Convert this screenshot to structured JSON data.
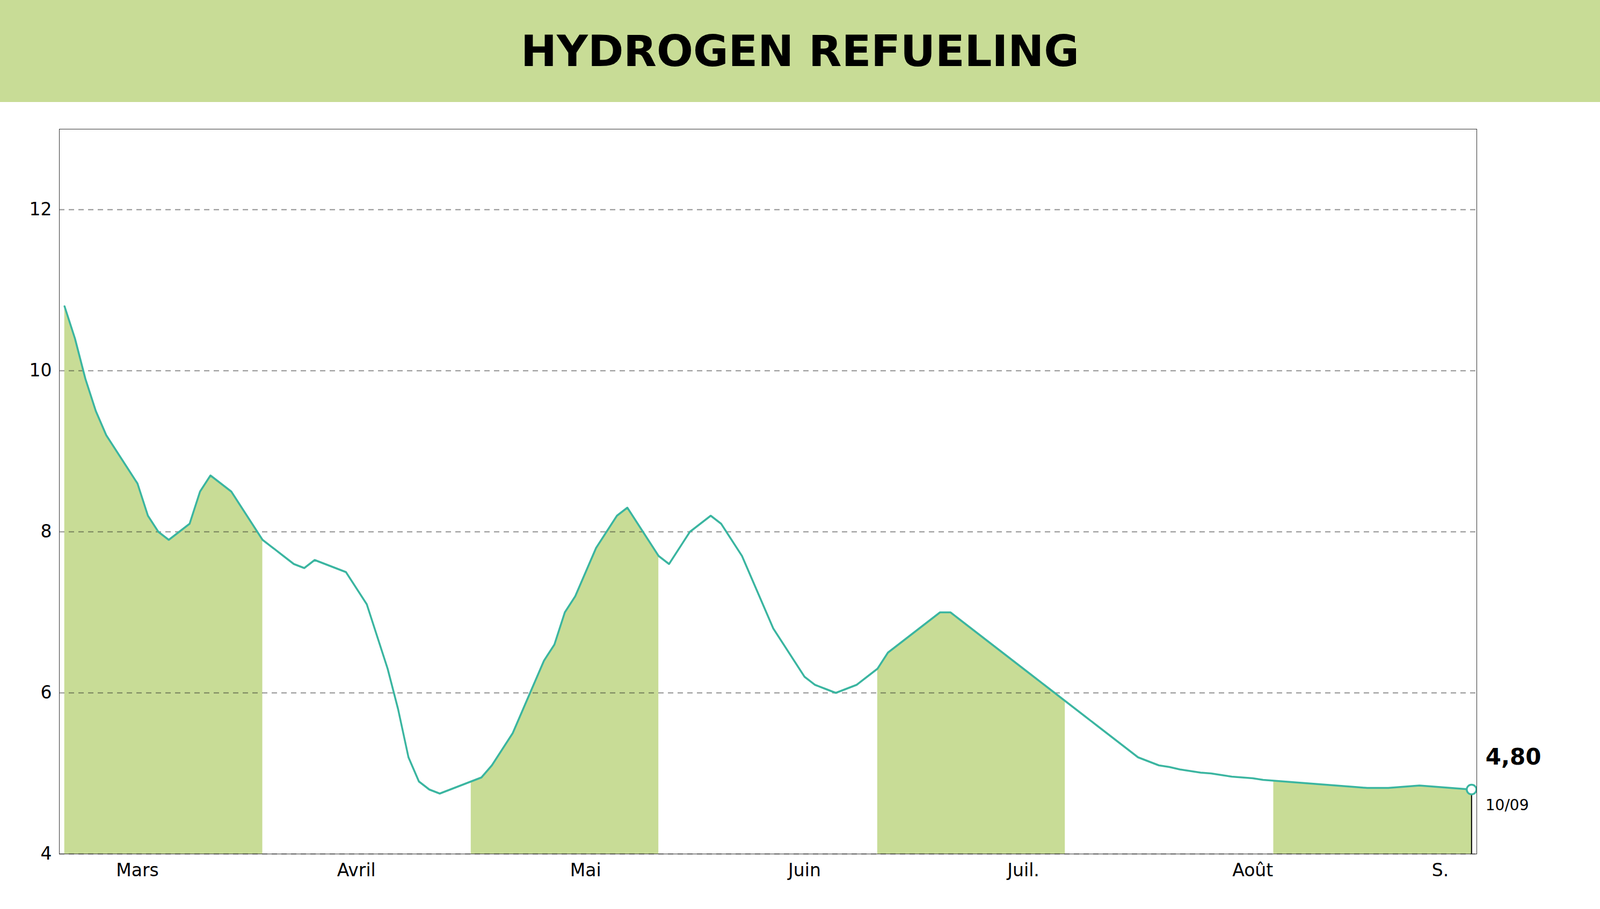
{
  "chart_data": {
    "type": "line",
    "title": "HYDROGEN REFUELING",
    "color": "#3ab5a0",
    "ylim": [
      4,
      13.0
    ],
    "yticks": [
      4,
      6,
      8,
      10,
      12
    ],
    "grid": true,
    "data_labels": true,
    "annotations": [
      "10/09"
    ],
    "categories": [
      null,
      null,
      null,
      null,
      null,
      null,
      null,
      "Mars",
      null,
      null,
      null,
      null,
      null,
      null,
      null,
      null,
      null,
      null,
      null,
      null,
      null,
      null,
      null,
      null,
      null,
      null,
      null,
      null,
      "Avril",
      null,
      null,
      null,
      null,
      null,
      null,
      null,
      null,
      null,
      null,
      null,
      null,
      null,
      null,
      null,
      null,
      null,
      null,
      null,
      null,
      null,
      "Mai",
      null,
      null,
      null,
      null,
      null,
      null,
      null,
      null,
      null,
      null,
      null,
      null,
      null,
      null,
      null,
      null,
      null,
      null,
      null,
      null,
      "Juin",
      null,
      null,
      null,
      null,
      null,
      null,
      null,
      null,
      null,
      null,
      null,
      null,
      null,
      null,
      null,
      null,
      null,
      null,
      null,
      null,
      "Juil.",
      null,
      null,
      null,
      null,
      null,
      null,
      null,
      null,
      null,
      null,
      null,
      null,
      null,
      null,
      null,
      null,
      null,
      null,
      null,
      null,
      null,
      "Août",
      null,
      null,
      null,
      null,
      null,
      null,
      null,
      null,
      null,
      null,
      null,
      null,
      null,
      null,
      null,
      null,
      null,
      "S.",
      null,
      null,
      null
    ],
    "values": [
      10.8,
      10.4,
      9.9,
      9.5,
      9.2,
      9.0,
      8.8,
      8.6,
      8.2,
      8.0,
      7.9,
      8.0,
      8.1,
      8.5,
      8.7,
      8.6,
      8.5,
      8.3,
      8.1,
      7.9,
      7.8,
      7.7,
      7.6,
      7.55,
      7.65,
      7.6,
      7.55,
      7.5,
      7.3,
      7.1,
      6.7,
      6.3,
      5.8,
      5.2,
      4.9,
      4.8,
      4.75,
      4.8,
      4.85,
      4.9,
      4.95,
      5.1,
      5.3,
      5.5,
      5.8,
      6.1,
      6.4,
      6.6,
      7.0,
      7.2,
      7.5,
      7.8,
      8.0,
      8.2,
      8.3,
      8.1,
      7.9,
      7.7,
      7.6,
      7.8,
      8.0,
      8.1,
      8.2,
      8.1,
      7.9,
      7.7,
      7.4,
      7.1,
      6.8,
      6.6,
      6.4,
      6.2,
      6.1,
      6.05,
      6.0,
      6.05,
      6.1,
      6.2,
      6.3,
      6.5,
      6.6,
      6.7,
      6.8,
      6.9,
      7.0,
      7.0,
      6.9,
      6.8,
      6.7,
      6.6,
      6.5,
      6.4,
      6.3,
      6.2,
      6.1,
      6.0,
      5.9,
      5.8,
      5.7,
      5.6,
      5.5,
      5.4,
      5.3,
      5.2,
      5.15,
      5.1,
      5.08,
      5.05,
      5.03,
      5.01,
      5.0,
      4.98,
      4.96,
      4.95,
      4.94,
      4.92,
      4.91,
      4.9,
      4.89,
      4.88,
      4.87,
      4.86,
      4.85,
      4.84,
      4.83,
      4.82,
      4.82,
      4.82,
      4.83,
      4.84,
      4.85,
      4.84,
      4.83,
      4.82,
      4.81,
      4.8
    ],
    "value_labels": [
      null,
      null,
      null,
      null,
      null,
      null,
      null,
      null,
      null,
      null,
      null,
      null,
      null,
      null,
      null,
      null,
      null,
      null,
      null,
      null,
      null,
      null,
      null,
      null,
      null,
      null,
      null,
      null,
      null,
      null,
      null,
      null,
      null,
      null,
      null,
      null,
      null,
      null,
      null,
      null,
      null,
      null,
      null,
      null,
      null,
      null,
      null,
      null,
      null,
      null,
      null,
      null,
      null,
      null,
      null,
      null,
      null,
      null,
      null,
      null,
      null,
      null,
      null,
      null,
      null,
      null,
      null,
      null,
      null,
      null,
      null,
      null,
      null,
      null,
      null,
      null,
      null,
      null,
      null,
      null,
      null,
      null,
      null,
      null,
      null,
      null,
      null,
      null,
      null,
      null,
      null,
      null,
      null,
      null,
      null,
      null,
      null,
      null,
      null,
      null,
      null,
      null,
      null,
      null,
      null,
      null,
      null,
      null,
      null,
      null,
      null,
      null,
      null,
      null,
      null,
      null,
      null,
      null,
      null,
      null,
      null,
      null,
      null,
      null,
      null,
      null,
      null,
      null,
      null,
      null,
      null,
      null,
      null,
      null,
      null,
      "4,80"
    ]
  }
}
